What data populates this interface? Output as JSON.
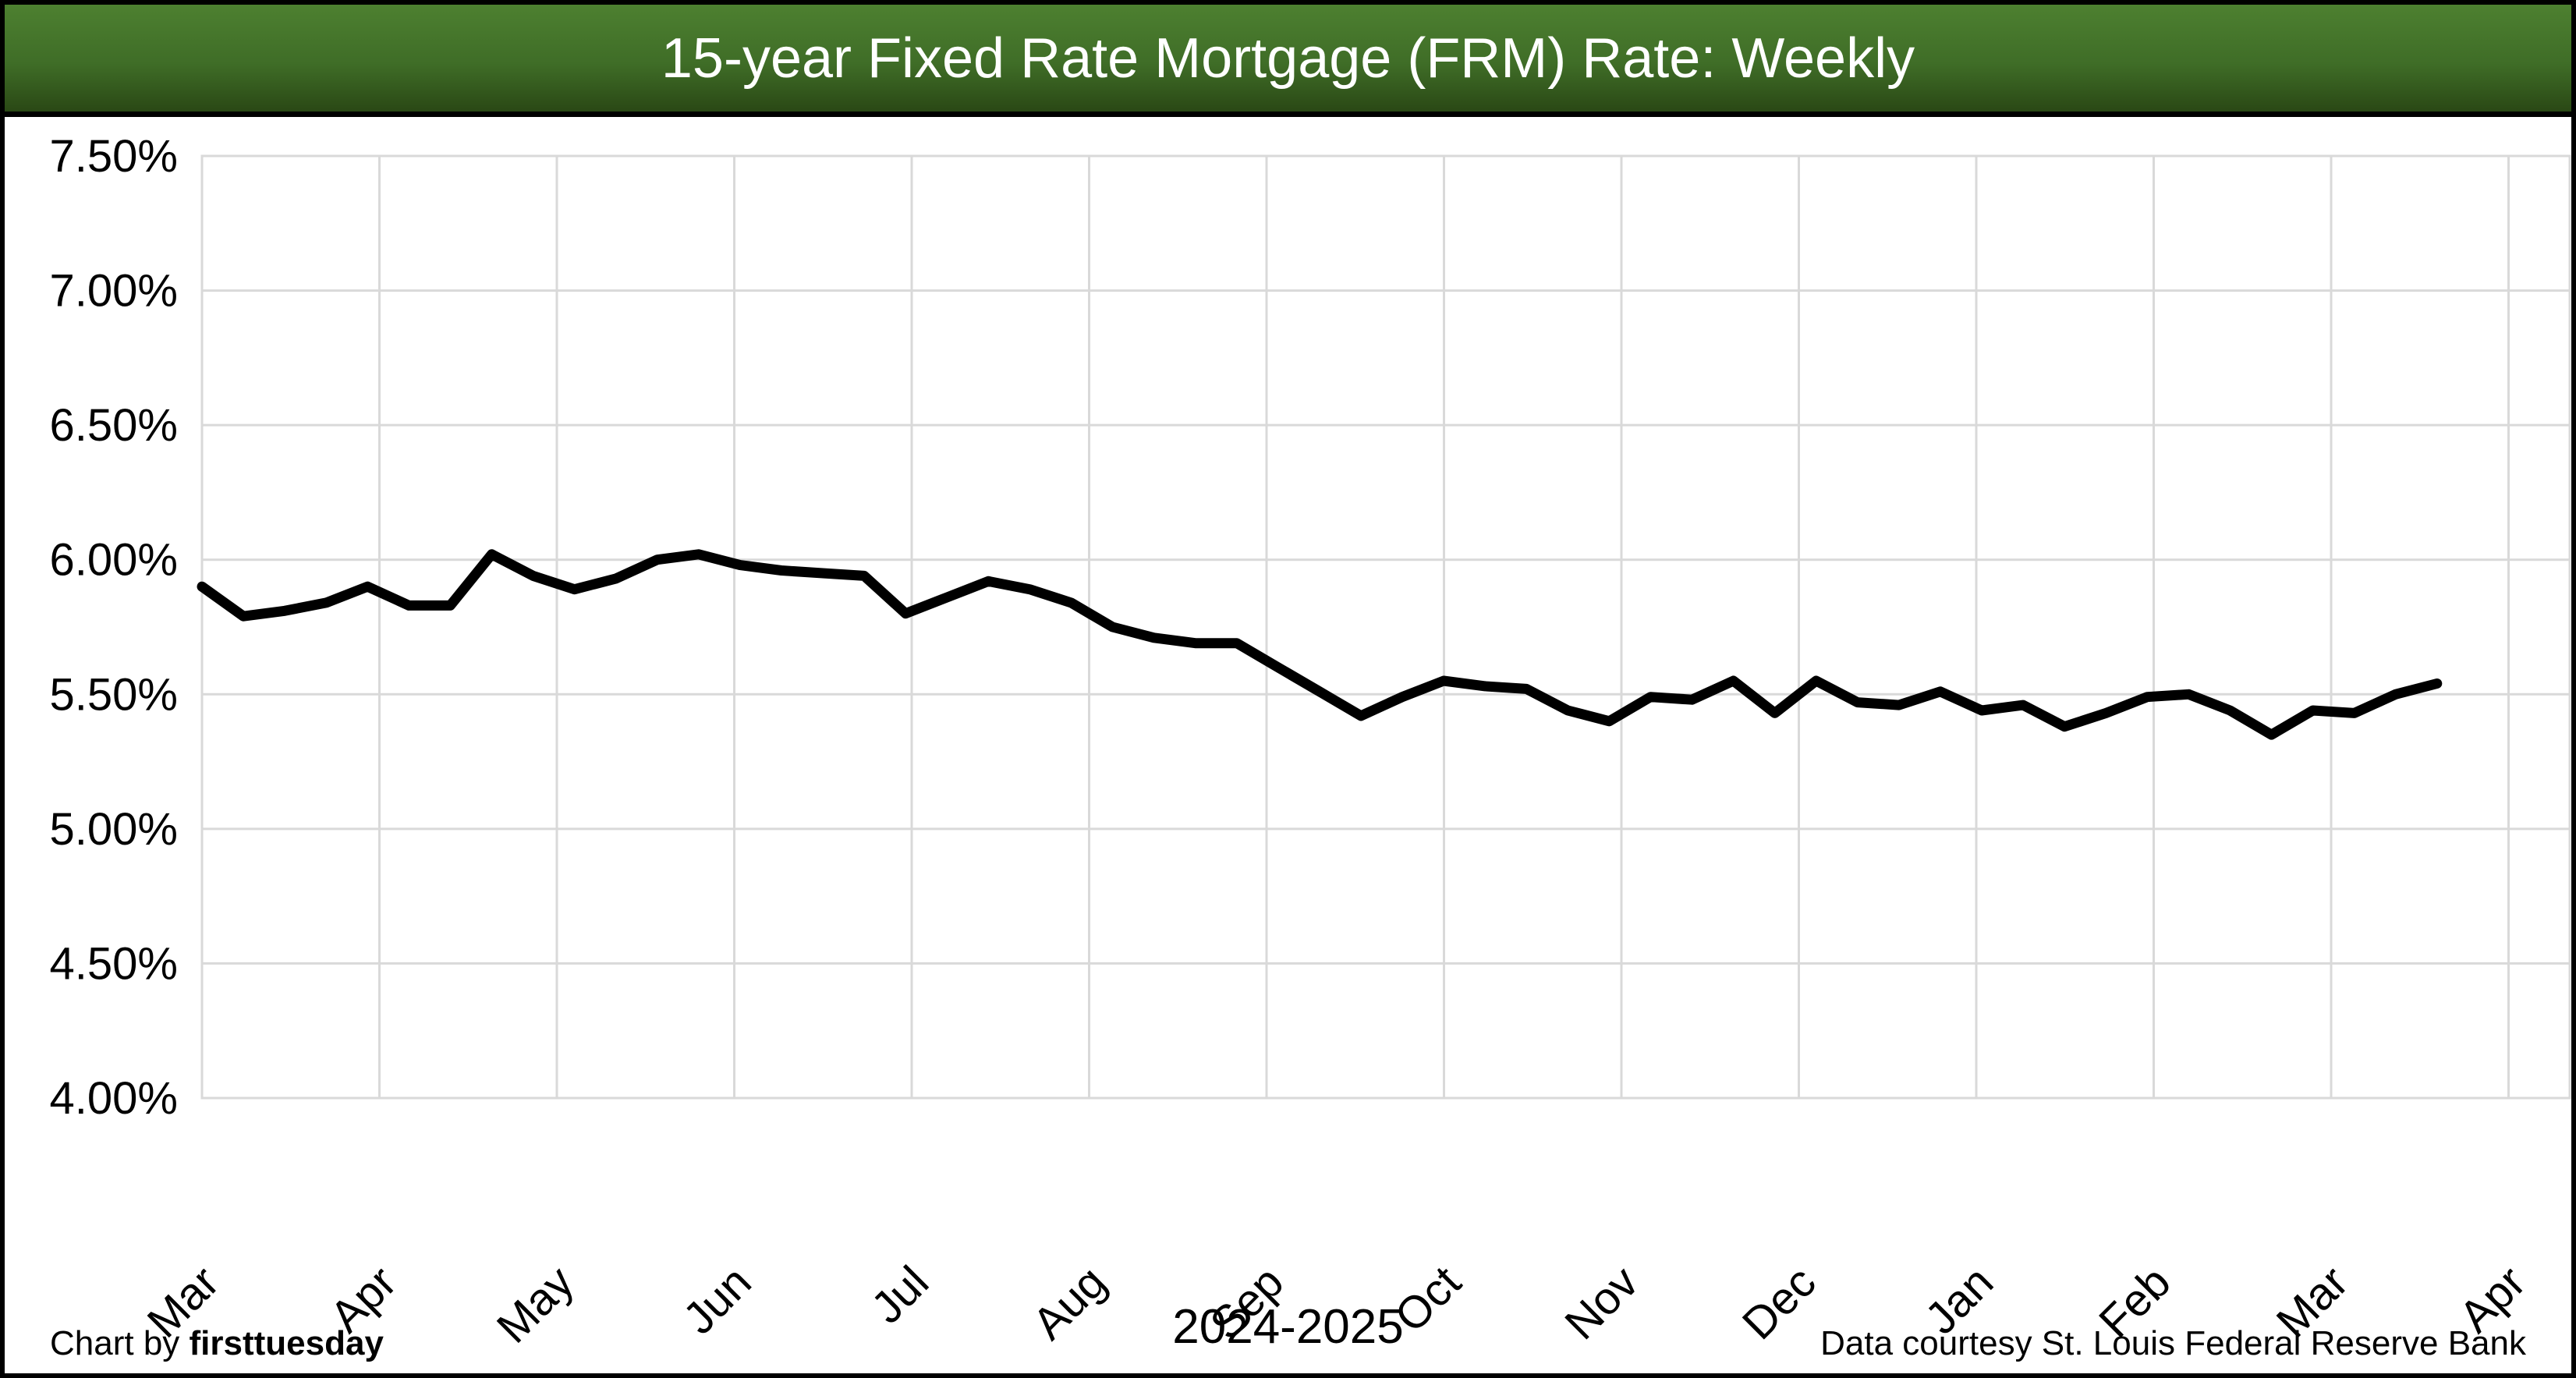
{
  "title": "15-year Fixed Rate Mortgage (FRM) Rate: Weekly",
  "footer": {
    "chart_by_prefix": "Chart by ",
    "chart_by_brand": "firsttuesday",
    "period": "2024-2025",
    "data_courtesy": "Data courtesy St. Louis Federal Reserve Bank"
  },
  "colors": {
    "title_bg_top": "#4d8030",
    "title_bg_bottom": "#2a4815",
    "title_text": "#ffffff",
    "page_border": "#000000",
    "gridline": "#d9d9d9",
    "line": "#000000",
    "axis_text": "#000000"
  },
  "chart_data": {
    "type": "line",
    "title": "15-year Fixed Rate Mortgage (FRM) Rate: Weekly",
    "xlabel": "2024-2025",
    "ylabel": "",
    "ylim": [
      4.0,
      7.5
    ],
    "y_tick_step": 0.5,
    "y_tick_labels": [
      "4.00%",
      "4.50%",
      "5.00%",
      "5.50%",
      "6.00%",
      "6.50%",
      "7.00%",
      "7.50%"
    ],
    "x_tick_labels": [
      "Mar",
      "Apr",
      "May",
      "Jun",
      "Jul",
      "Aug",
      "Sep",
      "Oct",
      "Nov",
      "Dec",
      "Jan",
      "Feb",
      "Mar",
      "Apr"
    ],
    "grid": true,
    "legend_position": "none",
    "x": [
      "2024-03-07",
      "2024-03-14",
      "2024-03-21",
      "2024-03-28",
      "2024-04-04",
      "2024-04-11",
      "2024-04-18",
      "2024-04-25",
      "2024-05-02",
      "2024-05-09",
      "2024-05-16",
      "2024-05-23",
      "2024-05-30",
      "2024-06-06",
      "2024-06-13",
      "2024-06-20",
      "2024-06-27",
      "2024-07-04",
      "2024-07-11",
      "2024-07-18",
      "2024-07-25",
      "2024-08-01",
      "2024-08-08",
      "2024-08-15",
      "2024-08-22",
      "2024-08-29",
      "2024-09-05",
      "2024-09-12",
      "2024-09-19",
      "2024-09-26",
      "2024-10-03",
      "2024-10-10",
      "2024-10-17",
      "2024-10-24",
      "2024-10-31",
      "2024-11-07",
      "2024-11-14",
      "2024-11-21",
      "2024-11-28",
      "2024-12-05",
      "2024-12-12",
      "2024-12-19",
      "2024-12-26",
      "2025-01-02",
      "2025-01-09",
      "2025-01-16",
      "2025-01-23",
      "2025-01-30",
      "2025-02-06",
      "2025-02-13",
      "2025-02-20",
      "2025-02-27",
      "2025-03-06",
      "2025-03-13",
      "2025-03-20"
    ],
    "values": [
      5.9,
      5.79,
      5.81,
      5.84,
      5.9,
      5.83,
      5.83,
      6.02,
      5.94,
      5.89,
      5.93,
      6.0,
      6.02,
      5.98,
      5.96,
      5.95,
      5.94,
      5.8,
      5.86,
      5.92,
      5.89,
      5.84,
      5.75,
      5.71,
      5.69,
      5.69,
      5.6,
      5.51,
      5.42,
      5.49,
      5.55,
      5.53,
      5.52,
      5.44,
      5.4,
      5.49,
      5.48,
      5.55,
      5.43,
      5.55,
      5.47,
      5.46,
      5.51,
      5.44,
      5.46,
      5.38,
      5.43,
      5.49,
      5.5,
      5.44,
      5.35,
      5.44,
      5.43,
      5.5,
      5.54
    ]
  }
}
